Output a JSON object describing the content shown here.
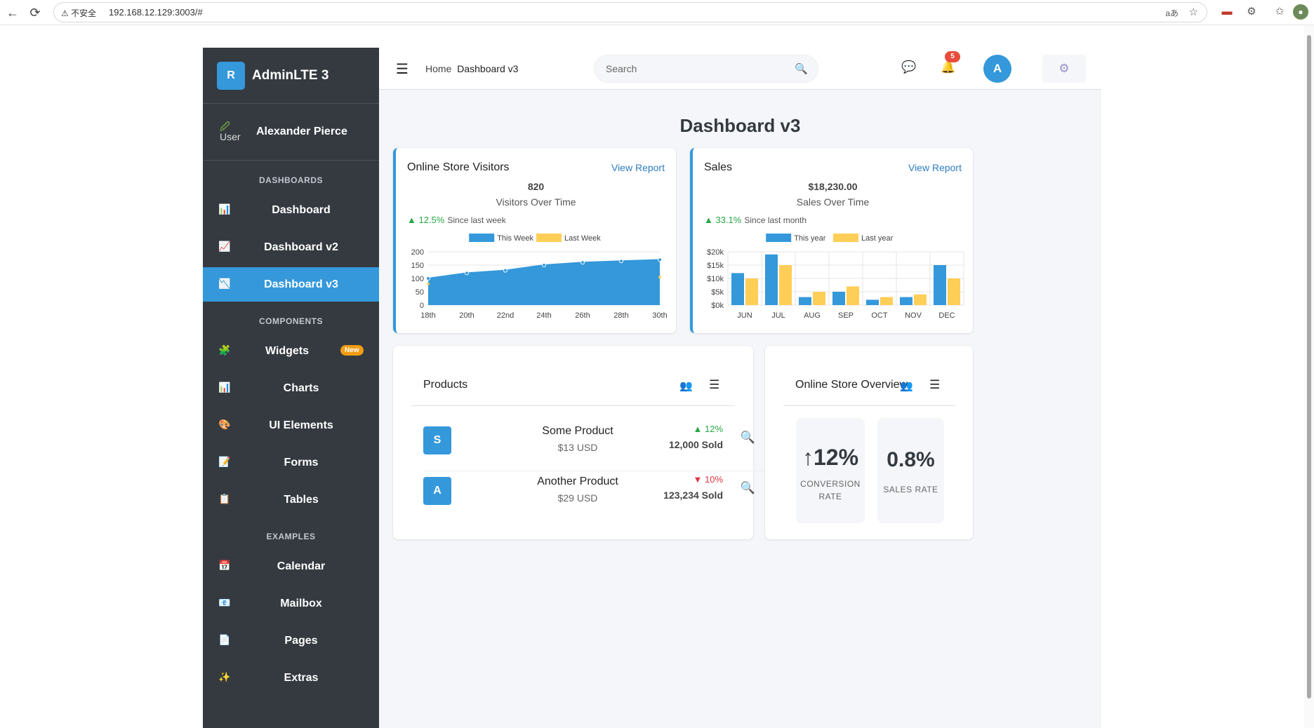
{
  "browser": {
    "security_label": "⚠ 不安全",
    "url": "192.168.12.129:3003/#"
  },
  "sidebar": {
    "brand_letter": "R",
    "brand_name": "AdminLTE 3",
    "user_image_alt": "User",
    "user_name": "Alexander Pierce",
    "headers": [
      "DASHBOARDS",
      "COMPONENTS",
      "EXAMPLES"
    ],
    "dashboards": [
      {
        "label": "Dashboard",
        "icon": "bar-chart-icon"
      },
      {
        "label": "Dashboard v2",
        "icon": "line-chart-icon"
      },
      {
        "label": "Dashboard v3",
        "icon": "chart-down-icon",
        "active": true
      }
    ],
    "components": [
      {
        "label": "Widgets",
        "icon": "puzzle-icon",
        "badge": "New"
      },
      {
        "label": "Charts",
        "icon": "bar-chart-icon"
      },
      {
        "label": "UI Elements",
        "icon": "palette-icon"
      },
      {
        "label": "Forms",
        "icon": "form-icon"
      },
      {
        "label": "Tables",
        "icon": "clipboard-icon"
      }
    ],
    "examples": [
      {
        "label": "Calendar",
        "icon": "calendar-icon"
      },
      {
        "label": "Mailbox",
        "icon": "mailbox-icon"
      },
      {
        "label": "Pages",
        "icon": "page-icon"
      },
      {
        "label": "Extras",
        "icon": "sparkles-icon"
      }
    ]
  },
  "topbar": {
    "breadcrumb_home": "Home",
    "breadcrumb_current": "Dashboard v3",
    "search_placeholder": "Search",
    "notification_count": "5",
    "avatar_letter": "A"
  },
  "page_title": "Dashboard v3",
  "visitors_card": {
    "title": "Online Store Visitors",
    "link": "View Report",
    "total": "820",
    "subtitle": "Visitors Over Time",
    "change": "▲ 12.5%",
    "change_note": "Since last week"
  },
  "sales_card": {
    "title": "Sales",
    "link": "View Report",
    "total": "$18,230.00",
    "subtitle": "Sales Over Time",
    "change": "▲ 33.1%",
    "change_note": "Since last month"
  },
  "products_card": {
    "title": "Products",
    "rows": [
      {
        "letter": "S",
        "name": "Some Product",
        "price": "$13 USD",
        "change": "▲ 12%",
        "direction": "up",
        "sold": "12,000 Sold"
      },
      {
        "letter": "A",
        "name": "Another Product",
        "price": "$29 USD",
        "change": "▼ 10%",
        "direction": "down",
        "sold": "123,234 Sold"
      }
    ]
  },
  "overview_card": {
    "title": "Online Store Overview",
    "stats": [
      {
        "value": "↑12%",
        "label_lines": [
          "CONVERSION",
          "RATE"
        ]
      },
      {
        "value": "0.8%",
        "label_lines": [
          "SALES RATE"
        ]
      }
    ]
  },
  "colors": {
    "primary": "#3498db",
    "secondary": "#ffce56",
    "sidebar": "#343a40",
    "success": "#28a745",
    "danger": "#dc3545"
  },
  "chart_data": [
    {
      "type": "area",
      "title": "",
      "categories": [
        "18th",
        "20th",
        "22nd",
        "24th",
        "26th",
        "28th",
        "30th"
      ],
      "series": [
        {
          "name": "This Week",
          "values": [
            100,
            120,
            130,
            150,
            160,
            165,
            170
          ]
        },
        {
          "name": "Last Week",
          "values": [
            80,
            100,
            110,
            120,
            130,
            140,
            105
          ]
        }
      ],
      "ylim": [
        0,
        200
      ],
      "yticks": [
        "0",
        "50",
        "100",
        "150",
        "200"
      ],
      "legend": "top-center"
    },
    {
      "type": "bar",
      "title": "",
      "categories": [
        "JUN",
        "JUL",
        "AUG",
        "SEP",
        "OCT",
        "NOV",
        "DEC"
      ],
      "series": [
        {
          "name": "This year",
          "values": [
            12000,
            19000,
            3000,
            5000,
            2000,
            3000,
            15000
          ]
        },
        {
          "name": "Last year",
          "values": [
            10000,
            15000,
            5000,
            7000,
            3000,
            4000,
            10000
          ]
        }
      ],
      "ylim": [
        0,
        20000
      ],
      "yticks": [
        "$0k",
        "$5k",
        "$10k",
        "$15k",
        "$20k"
      ],
      "legend": "top-center"
    }
  ]
}
